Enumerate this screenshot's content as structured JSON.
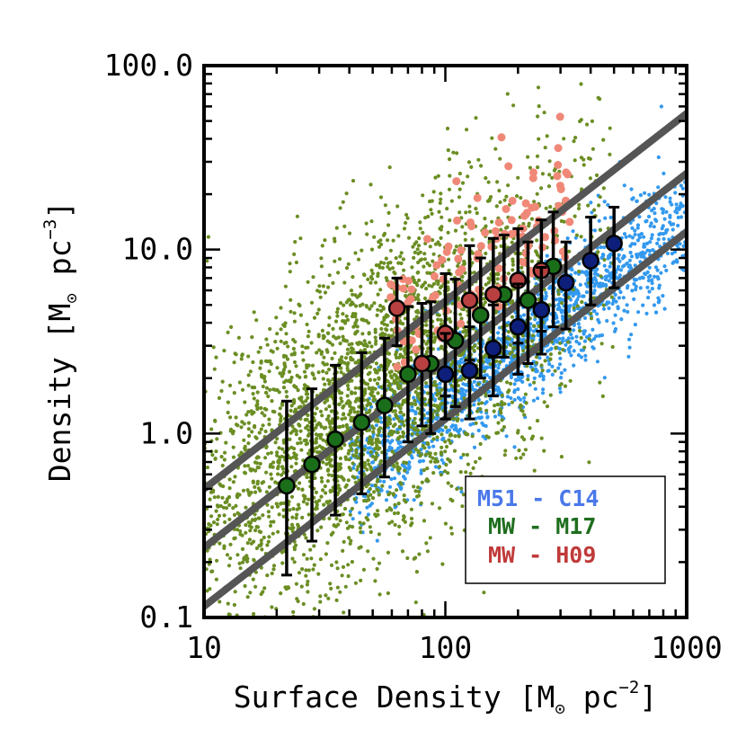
{
  "chart_data": {
    "type": "scatter",
    "title": "",
    "xlabel": {
      "prefix": "Surface Density [M",
      "sun": "⊙",
      "unit": " pc",
      "exp": "−2",
      "suffix": "]"
    },
    "ylabel": {
      "prefix": "Density [M",
      "sun": "⊙",
      "unit": " pc",
      "exp": "−3",
      "suffix": "]"
    },
    "xscale": "log",
    "yscale": "log",
    "xlim": [
      10,
      1000
    ],
    "ylim": [
      0.1,
      100
    ],
    "x_ticks": [
      10,
      100,
      1000
    ],
    "x_tick_labels": [
      "10",
      "100",
      "1000"
    ],
    "y_ticks": [
      0.1,
      1,
      10,
      100
    ],
    "y_tick_labels": [
      "0.1",
      "1.0",
      "10.0",
      "100.0"
    ],
    "legend_position": "bottom-right",
    "legend": [
      {
        "label": "M51 - C14",
        "color": "#4a78ea"
      },
      {
        "label": "MW - M17",
        "color": "#1f6e1f"
      },
      {
        "label": "MW - H09",
        "color": "#c03a3a"
      }
    ],
    "reference_lines": [
      {
        "name": "upper",
        "x": [
          10,
          1000
        ],
        "y": [
          0.5,
          55
        ],
        "color": "#555555"
      },
      {
        "name": "middle",
        "x": [
          10,
          1000
        ],
        "y": [
          0.24,
          26
        ],
        "color": "#555555"
      },
      {
        "name": "lower",
        "x": [
          10,
          1000
        ],
        "y": [
          0.115,
          12.5
        ],
        "color": "#555555"
      }
    ],
    "scatter_clouds": [
      {
        "name": "M51 cloud points",
        "color": "#3399ee",
        "center_x": 200,
        "spread_logx": 0.5,
        "relation_y_at_x100": 1.5,
        "slope": 1.0,
        "spread_logy": 0.18,
        "x_range": [
          40,
          1000
        ],
        "count": 1700
      },
      {
        "name": "MW M17 cloud points",
        "color": "#6b8e23",
        "center_x": 50,
        "spread_logx": 0.45,
        "relation_y_at_x100": 3.0,
        "slope": 0.85,
        "spread_logy": 0.42,
        "x_range": [
          10,
          500
        ],
        "count": 3200
      },
      {
        "name": "MW H09 cloud points",
        "color": "#f08878",
        "center_x": 150,
        "spread_logx": 0.3,
        "relation_y_at_x100": 6.5,
        "slope": 0.9,
        "spread_logy": 0.2,
        "x_range": [
          55,
          330
        ],
        "count": 110
      }
    ],
    "series": [
      {
        "name": "MW - M17",
        "color": "#1a6e1a",
        "x": [
          22,
          28,
          35,
          45,
          56,
          70,
          87,
          110,
          140,
          175,
          220,
          280
        ],
        "y": [
          0.52,
          0.68,
          0.93,
          1.15,
          1.42,
          2.1,
          2.4,
          3.2,
          4.4,
          5.7,
          5.3,
          8.1
        ],
        "ylo": [
          0.17,
          0.26,
          0.36,
          0.47,
          0.58,
          0.9,
          1.0,
          1.4,
          2.0,
          2.6,
          2.4,
          3.8
        ],
        "yhi": [
          1.5,
          1.75,
          2.35,
          2.75,
          3.3,
          4.9,
          5.2,
          6.9,
          9.0,
          12.0,
          11.0,
          16.0
        ]
      },
      {
        "name": "MW - H09",
        "color": "#b84040",
        "x": [
          63,
          80,
          100,
          126,
          158,
          200,
          250
        ],
        "y": [
          4.8,
          2.4,
          3.5,
          5.3,
          5.7,
          6.8,
          7.7
        ],
        "ylo": [
          3.0,
          1.1,
          1.6,
          2.5,
          2.6,
          3.1,
          3.6
        ],
        "yhi": [
          7.0,
          5.1,
          7.4,
          10.5,
          11.5,
          13.0,
          14.5
        ]
      },
      {
        "name": "M51 - C14",
        "color": "#0d1f7a",
        "x": [
          100,
          126,
          158,
          200,
          250,
          316,
          400,
          500
        ],
        "y": [
          2.1,
          2.2,
          2.9,
          3.8,
          4.7,
          6.6,
          8.7,
          10.8
        ],
        "ylo": [
          1.2,
          1.2,
          1.6,
          2.1,
          2.7,
          3.7,
          5.0,
          6.2
        ],
        "yhi": [
          3.5,
          3.8,
          5.0,
          6.5,
          8.0,
          11.0,
          15.0,
          17.0
        ]
      }
    ]
  }
}
